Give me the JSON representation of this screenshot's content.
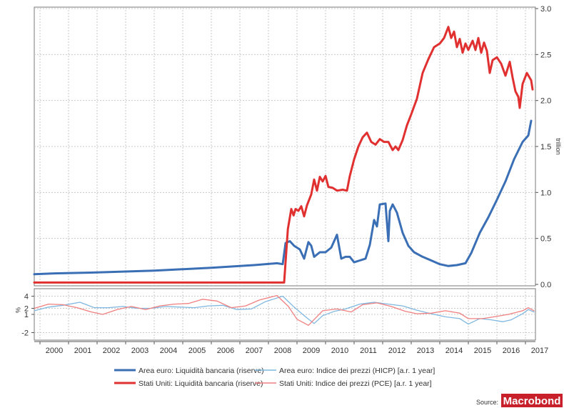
{
  "chart_data": [
    {
      "type": "line",
      "ylabel": "trillion",
      "ylim": [
        0,
        3.0
      ],
      "yticks": [
        "0.0",
        "0.5",
        "1.0",
        "1.5",
        "2.0",
        "2.5",
        "3.0"
      ],
      "x_range": [
        1999.8,
        2017.35
      ],
      "grid": true,
      "series": [
        {
          "name": "Area euro: Liquidità bancaria (riserve)",
          "color": "#3a6fb5",
          "points": [
            [
              1999.8,
              0.11
            ],
            [
              2000.5,
              0.12
            ],
            [
              2002,
              0.13
            ],
            [
              2004,
              0.15
            ],
            [
              2006,
              0.18
            ],
            [
              2007.5,
              0.21
            ],
            [
              2008.3,
              0.23
            ],
            [
              2008.5,
              0.22
            ],
            [
              2008.6,
              0.45
            ],
            [
              2008.75,
              0.47
            ],
            [
              2008.9,
              0.42
            ],
            [
              2009.1,
              0.38
            ],
            [
              2009.25,
              0.28
            ],
            [
              2009.4,
              0.46
            ],
            [
              2009.5,
              0.42
            ],
            [
              2009.6,
              0.3
            ],
            [
              2009.8,
              0.35
            ],
            [
              2010,
              0.35
            ],
            [
              2010.2,
              0.4
            ],
            [
              2010.4,
              0.54
            ],
            [
              2010.55,
              0.28
            ],
            [
              2010.7,
              0.3
            ],
            [
              2010.85,
              0.3
            ],
            [
              2011,
              0.24
            ],
            [
              2011.2,
              0.26
            ],
            [
              2011.4,
              0.28
            ],
            [
              2011.55,
              0.43
            ],
            [
              2011.7,
              0.7
            ],
            [
              2011.8,
              0.63
            ],
            [
              2011.9,
              0.87
            ],
            [
              2012.1,
              0.88
            ],
            [
              2012.2,
              0.47
            ],
            [
              2012.25,
              0.8
            ],
            [
              2012.35,
              0.87
            ],
            [
              2012.5,
              0.78
            ],
            [
              2012.7,
              0.56
            ],
            [
              2012.9,
              0.42
            ],
            [
              2013.1,
              0.35
            ],
            [
              2013.4,
              0.3
            ],
            [
              2013.7,
              0.26
            ],
            [
              2014,
              0.22
            ],
            [
              2014.3,
              0.2
            ],
            [
              2014.6,
              0.21
            ],
            [
              2014.9,
              0.23
            ],
            [
              2015.1,
              0.34
            ],
            [
              2015.4,
              0.56
            ],
            [
              2015.7,
              0.73
            ],
            [
              2016,
              0.92
            ],
            [
              2016.3,
              1.12
            ],
            [
              2016.6,
              1.36
            ],
            [
              2016.9,
              1.55
            ],
            [
              2017.1,
              1.62
            ],
            [
              2017.2,
              1.78
            ]
          ]
        },
        {
          "name": "Stati Uniti: Liquidità bancaria (riserve)",
          "color": "#e03030",
          "points": [
            [
              1999.8,
              0.02
            ],
            [
              2002,
              0.02
            ],
            [
              2004,
              0.02
            ],
            [
              2006,
              0.02
            ],
            [
              2008,
              0.02
            ],
            [
              2008.55,
              0.02
            ],
            [
              2008.68,
              0.6
            ],
            [
              2008.8,
              0.82
            ],
            [
              2008.88,
              0.75
            ],
            [
              2008.95,
              0.82
            ],
            [
              2009.05,
              0.8
            ],
            [
              2009.15,
              0.85
            ],
            [
              2009.25,
              0.74
            ],
            [
              2009.35,
              0.86
            ],
            [
              2009.5,
              0.98
            ],
            [
              2009.6,
              1.14
            ],
            [
              2009.7,
              1.02
            ],
            [
              2009.8,
              1.17
            ],
            [
              2009.9,
              1.12
            ],
            [
              2010,
              1.18
            ],
            [
              2010.1,
              1.06
            ],
            [
              2010.25,
              1.05
            ],
            [
              2010.4,
              1.02
            ],
            [
              2010.6,
              1.03
            ],
            [
              2010.75,
              1.02
            ],
            [
              2010.85,
              1.18
            ],
            [
              2011,
              1.36
            ],
            [
              2011.15,
              1.5
            ],
            [
              2011.3,
              1.6
            ],
            [
              2011.45,
              1.65
            ],
            [
              2011.6,
              1.55
            ],
            [
              2011.75,
              1.52
            ],
            [
              2011.9,
              1.58
            ],
            [
              2012.05,
              1.55
            ],
            [
              2012.2,
              1.55
            ],
            [
              2012.35,
              1.46
            ],
            [
              2012.45,
              1.5
            ],
            [
              2012.55,
              1.46
            ],
            [
              2012.7,
              1.57
            ],
            [
              2012.85,
              1.73
            ],
            [
              2013,
              1.85
            ],
            [
              2013.2,
              2.02
            ],
            [
              2013.4,
              2.3
            ],
            [
              2013.6,
              2.45
            ],
            [
              2013.8,
              2.58
            ],
            [
              2014,
              2.62
            ],
            [
              2014.15,
              2.68
            ],
            [
              2014.3,
              2.8
            ],
            [
              2014.4,
              2.68
            ],
            [
              2014.5,
              2.75
            ],
            [
              2014.6,
              2.58
            ],
            [
              2014.7,
              2.67
            ],
            [
              2014.8,
              2.52
            ],
            [
              2014.9,
              2.62
            ],
            [
              2015,
              2.55
            ],
            [
              2015.15,
              2.65
            ],
            [
              2015.25,
              2.55
            ],
            [
              2015.35,
              2.68
            ],
            [
              2015.45,
              2.52
            ],
            [
              2015.55,
              2.63
            ],
            [
              2015.65,
              2.54
            ],
            [
              2015.75,
              2.3
            ],
            [
              2015.85,
              2.44
            ],
            [
              2016,
              2.47
            ],
            [
              2016.15,
              2.4
            ],
            [
              2016.3,
              2.27
            ],
            [
              2016.45,
              2.42
            ],
            [
              2016.55,
              2.25
            ],
            [
              2016.65,
              2.1
            ],
            [
              2016.75,
              2.04
            ],
            [
              2016.8,
              1.92
            ],
            [
              2016.9,
              2.18
            ],
            [
              2017.05,
              2.3
            ],
            [
              2017.2,
              2.22
            ],
            [
              2017.25,
              2.12
            ]
          ]
        }
      ]
    },
    {
      "type": "line",
      "ylabel": "%",
      "ylim": [
        -3,
        5
      ],
      "yticks": [
        "4",
        "2",
        "1",
        "-2"
      ],
      "x_range": [
        1999.8,
        2017.35
      ],
      "xticks": [
        "2000",
        "2001",
        "2002",
        "2003",
        "2004",
        "2005",
        "2006",
        "2007",
        "2008",
        "2009",
        "2010",
        "2011",
        "2012",
        "2013",
        "2014",
        "2015",
        "2016",
        "2017"
      ],
      "grid": true,
      "series": [
        {
          "name": "Area euro: Indice dei prezzi (HICP) [a.r. 1 year]",
          "color": "#7fb8e0",
          "points": [
            [
              1999.8,
              1.6
            ],
            [
              2000.3,
              2.2
            ],
            [
              2000.8,
              2.5
            ],
            [
              2001.4,
              3.0
            ],
            [
              2001.9,
              2.1
            ],
            [
              2002.4,
              2.1
            ],
            [
              2002.9,
              2.3
            ],
            [
              2003.4,
              2.0
            ],
            [
              2003.9,
              2.0
            ],
            [
              2004.4,
              2.3
            ],
            [
              2004.9,
              2.2
            ],
            [
              2005.4,
              2.1
            ],
            [
              2005.9,
              2.4
            ],
            [
              2006.4,
              2.5
            ],
            [
              2006.9,
              1.8
            ],
            [
              2007.4,
              1.9
            ],
            [
              2007.9,
              3.1
            ],
            [
              2008.5,
              4.0
            ],
            [
              2008.9,
              2.2
            ],
            [
              2009.3,
              0.6
            ],
            [
              2009.6,
              -0.5
            ],
            [
              2009.9,
              0.8
            ],
            [
              2010.3,
              1.5
            ],
            [
              2010.7,
              1.9
            ],
            [
              2011.2,
              2.7
            ],
            [
              2011.7,
              3.0
            ],
            [
              2012.2,
              2.7
            ],
            [
              2012.7,
              2.4
            ],
            [
              2013.2,
              1.7
            ],
            [
              2013.7,
              1.1
            ],
            [
              2014.2,
              0.6
            ],
            [
              2014.7,
              0.3
            ],
            [
              2015.0,
              -0.6
            ],
            [
              2015.4,
              0.3
            ],
            [
              2015.8,
              0.1
            ],
            [
              2016.2,
              -0.2
            ],
            [
              2016.5,
              0.1
            ],
            [
              2016.9,
              1.1
            ],
            [
              2017.1,
              1.8
            ],
            [
              2017.3,
              1.4
            ]
          ]
        },
        {
          "name": "Stati Uniti: Indice dei prezzi (PCE) [a.r. 1 year]",
          "color": "#f08080",
          "points": [
            [
              1999.8,
              2.0
            ],
            [
              2000.3,
              2.7
            ],
            [
              2000.8,
              2.6
            ],
            [
              2001.3,
              2.1
            ],
            [
              2001.8,
              1.4
            ],
            [
              2002.2,
              1.0
            ],
            [
              2002.7,
              1.8
            ],
            [
              2003.2,
              2.3
            ],
            [
              2003.7,
              1.8
            ],
            [
              2004.2,
              2.4
            ],
            [
              2004.7,
              2.7
            ],
            [
              2005.2,
              2.8
            ],
            [
              2005.7,
              3.5
            ],
            [
              2006.2,
              3.2
            ],
            [
              2006.7,
              2.1
            ],
            [
              2007.2,
              2.4
            ],
            [
              2007.7,
              3.4
            ],
            [
              2008.3,
              4.1
            ],
            [
              2008.7,
              2.3
            ],
            [
              2009.0,
              0.2
            ],
            [
              2009.4,
              -0.8
            ],
            [
              2009.9,
              1.6
            ],
            [
              2010.4,
              1.9
            ],
            [
              2010.9,
              1.4
            ],
            [
              2011.3,
              2.6
            ],
            [
              2011.8,
              2.9
            ],
            [
              2012.3,
              2.3
            ],
            [
              2012.8,
              1.5
            ],
            [
              2013.2,
              1.1
            ],
            [
              2013.7,
              1.2
            ],
            [
              2014.2,
              1.6
            ],
            [
              2014.7,
              1.2
            ],
            [
              2015.0,
              0.3
            ],
            [
              2015.5,
              0.3
            ],
            [
              2015.9,
              0.6
            ],
            [
              2016.4,
              1.0
            ],
            [
              2016.9,
              1.6
            ],
            [
              2017.1,
              2.1
            ],
            [
              2017.3,
              1.6
            ]
          ]
        }
      ]
    }
  ],
  "legend": [
    {
      "label": "Area euro: Liquidità bancaria (riserve)",
      "color": "#3a6fb5",
      "weight": "thick"
    },
    {
      "label": "Area euro: Indice dei prezzi (HICP) [a.r. 1 year]",
      "color": "#7fb8e0",
      "weight": "thin"
    },
    {
      "label": "Stati Uniti: Liquidità bancaria (riserve)",
      "color": "#e03030",
      "weight": "thick"
    },
    {
      "label": "Stati Uniti: Indice dei prezzi (PCE) [a.r. 1 year]",
      "color": "#f08080",
      "weight": "thin"
    }
  ],
  "source_label": "Source:",
  "brand": {
    "name": "Macrobond",
    "color": "#c8202a"
  }
}
